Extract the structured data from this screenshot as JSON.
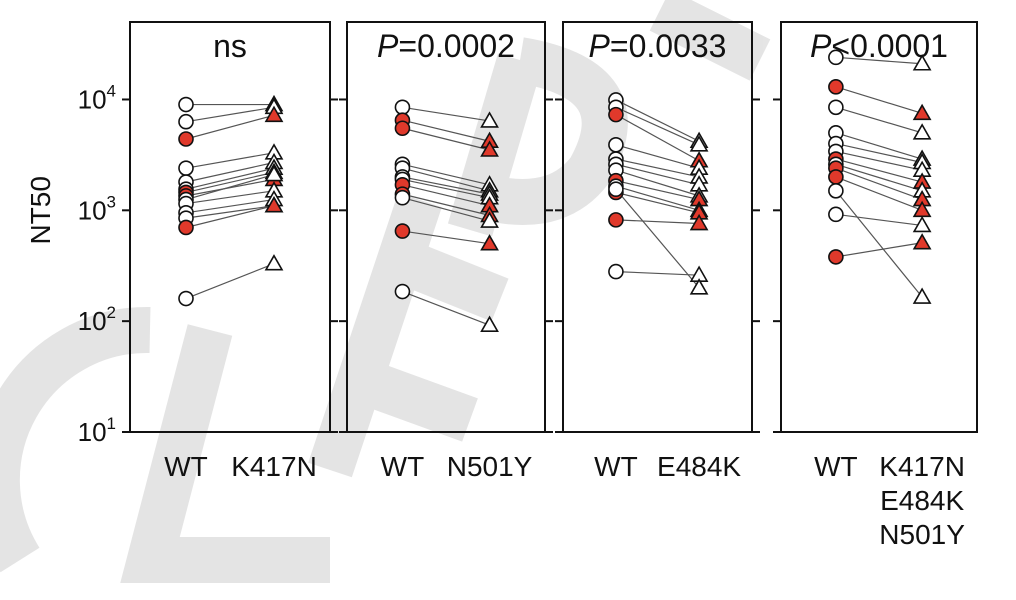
{
  "watermark": {
    "text": "CLEAR",
    "color": "#d3d3d3",
    "opacity": 0.6
  },
  "colors": {
    "red_fill": "#e0392b",
    "open_fill": "#ffffff",
    "stroke": "#111111",
    "line": "#555555"
  },
  "chart_data": {
    "type": "scatter",
    "scale": "log",
    "ylabel": "NT50",
    "ylim": [
      10,
      50000
    ],
    "y_ticks": [
      {
        "value": 10,
        "base": "10",
        "exp": "1"
      },
      {
        "value": 100,
        "base": "10",
        "exp": "2"
      },
      {
        "value": 1000,
        "base": "10",
        "exp": "3"
      },
      {
        "value": 10000,
        "base": "10",
        "exp": "4"
      }
    ],
    "legend": "none",
    "grid": false,
    "panels": [
      {
        "title_prefix": "",
        "title_rest": "ns",
        "categories": [
          [
            "WT"
          ],
          [
            "K417N"
          ]
        ],
        "pairs": [
          [
            9000,
            9000,
            "open"
          ],
          [
            6300,
            8500,
            "open"
          ],
          [
            4400,
            7200,
            "red"
          ],
          [
            2400,
            3300,
            "open"
          ],
          [
            1800,
            2700,
            "open"
          ],
          [
            1550,
            2400,
            "open"
          ],
          [
            1450,
            2200,
            "red"
          ],
          [
            1350,
            1900,
            "red"
          ],
          [
            1250,
            2100,
            "open"
          ],
          [
            1150,
            1500,
            "open"
          ],
          [
            950,
            1250,
            "open"
          ],
          [
            850,
            1100,
            "open"
          ],
          [
            700,
            1100,
            "red"
          ],
          [
            160,
            330,
            "open"
          ]
        ]
      },
      {
        "title_prefix": "P",
        "title_rest": "=0.0002",
        "categories": [
          [
            "WT"
          ],
          [
            "N501Y"
          ]
        ],
        "pairs": [
          [
            8500,
            6400,
            "open"
          ],
          [
            6500,
            4200,
            "red"
          ],
          [
            5500,
            3500,
            "red"
          ],
          [
            2600,
            1700,
            "open"
          ],
          [
            2400,
            1500,
            "open"
          ],
          [
            2000,
            1400,
            "open"
          ],
          [
            1900,
            1300,
            "open"
          ],
          [
            1700,
            1100,
            "red"
          ],
          [
            1400,
            900,
            "red"
          ],
          [
            1300,
            800,
            "open"
          ],
          [
            650,
            500,
            "red"
          ],
          [
            185,
            92,
            "open"
          ]
        ]
      },
      {
        "title_prefix": "P",
        "title_rest": "=0.0033",
        "categories": [
          [
            "WT"
          ],
          [
            "E484K"
          ]
        ],
        "pairs": [
          [
            9900,
            4200,
            "open"
          ],
          [
            8500,
            3900,
            "open"
          ],
          [
            7300,
            2800,
            "red"
          ],
          [
            3900,
            2400,
            "open"
          ],
          [
            2900,
            2000,
            "open"
          ],
          [
            2600,
            1700,
            "open"
          ],
          [
            2300,
            1350,
            "open"
          ],
          [
            1850,
            1250,
            "red"
          ],
          [
            1650,
            1000,
            "open"
          ],
          [
            1450,
            950,
            "red"
          ],
          [
            820,
            760,
            "red"
          ],
          [
            280,
            260,
            "open"
          ],
          [
            1550,
            200,
            "open"
          ]
        ]
      },
      {
        "title_prefix": "P",
        "title_rest": "<0.0001",
        "categories": [
          [
            "WT"
          ],
          [
            "K417N",
            "E484K",
            "N501Y"
          ]
        ],
        "pairs": [
          [
            24000,
            21000,
            "open"
          ],
          [
            13000,
            7500,
            "red"
          ],
          [
            8500,
            5000,
            "open"
          ],
          [
            5000,
            2900,
            "open"
          ],
          [
            4000,
            2700,
            "open"
          ],
          [
            3400,
            2300,
            "open"
          ],
          [
            2900,
            1800,
            "red"
          ],
          [
            2600,
            1500,
            "open"
          ],
          [
            2400,
            1250,
            "red"
          ],
          [
            2000,
            1000,
            "red"
          ],
          [
            920,
            730,
            "open"
          ],
          [
            380,
            510,
            "red"
          ],
          [
            1500,
            165,
            "open"
          ]
        ]
      }
    ]
  }
}
